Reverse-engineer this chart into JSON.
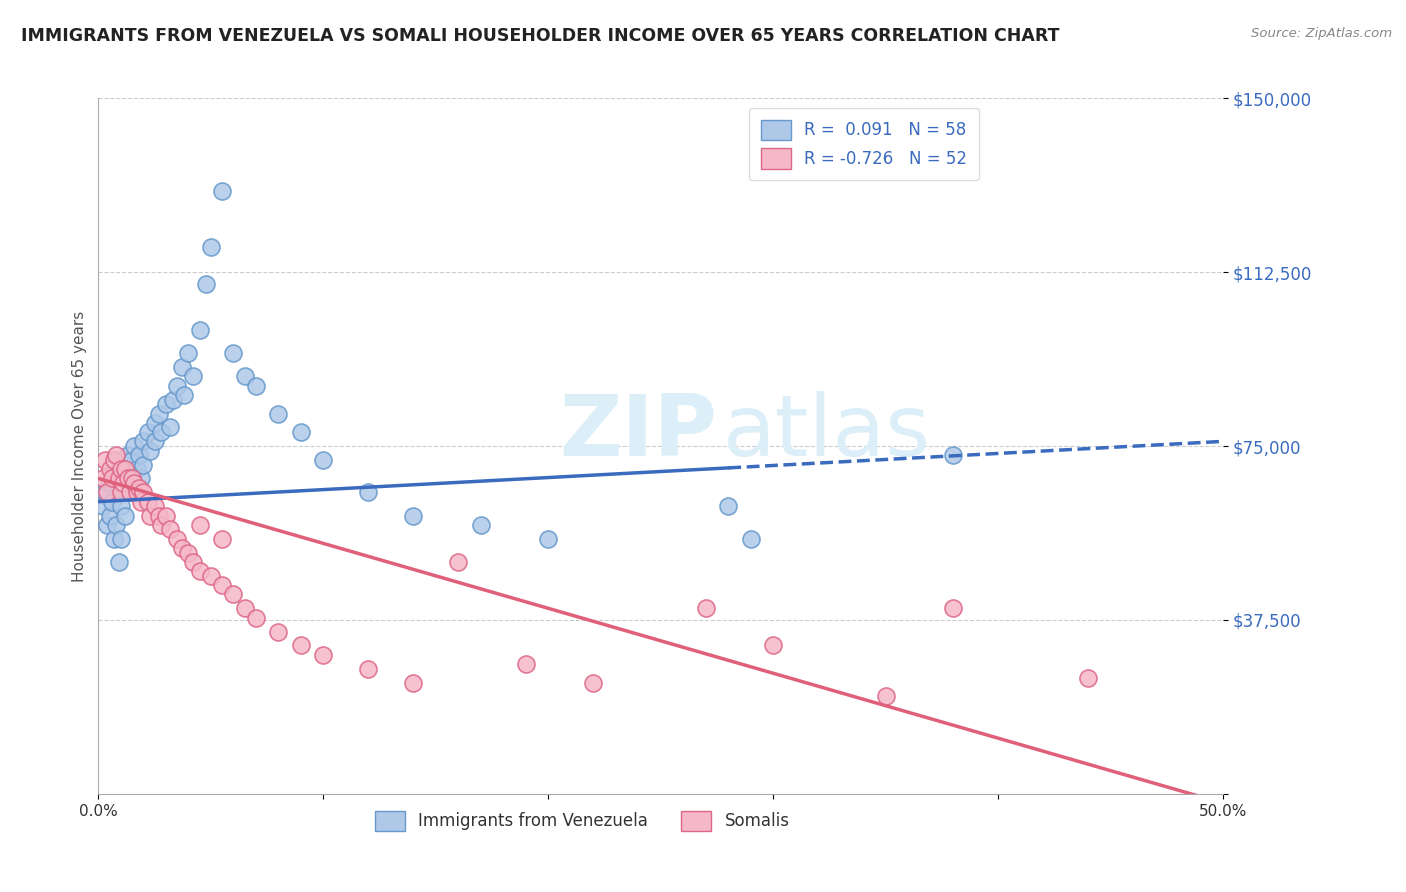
{
  "title": "IMMIGRANTS FROM VENEZUELA VS SOMALI HOUSEHOLDER INCOME OVER 65 YEARS CORRELATION CHART",
  "source": "Source: ZipAtlas.com",
  "ylabel": "Householder Income Over 65 years",
  "xmin": 0.0,
  "xmax": 0.5,
  "ymin": 0,
  "ymax": 150000,
  "yticks": [
    0,
    37500,
    75000,
    112500,
    150000
  ],
  "ytick_labels": [
    "",
    "$37,500",
    "$75,000",
    "$112,500",
    "$150,000"
  ],
  "xticks": [
    0.0,
    0.1,
    0.2,
    0.3,
    0.4,
    0.5
  ],
  "xtick_labels": [
    "0.0%",
    "",
    "",
    "",
    "",
    "50.0%"
  ],
  "blue_R": "0.091",
  "blue_N": "58",
  "pink_R": "-0.726",
  "pink_N": "52",
  "blue_color": "#aec8e8",
  "blue_edge": "#6699cc",
  "pink_color": "#f5b8c8",
  "pink_edge": "#dd6688",
  "blue_line_color": "#3a6bbf",
  "pink_line_color": "#e0607a",
  "label_color": "#3a6bbf",
  "watermark_color": "#dceef8",
  "blue_line_solid_end": 0.28,
  "blue_scatter_x": [
    0.002,
    0.003,
    0.004,
    0.005,
    0.005,
    0.006,
    0.007,
    0.007,
    0.008,
    0.008,
    0.009,
    0.009,
    0.01,
    0.01,
    0.01,
    0.012,
    0.012,
    0.013,
    0.014,
    0.015,
    0.015,
    0.016,
    0.017,
    0.018,
    0.019,
    0.02,
    0.02,
    0.022,
    0.023,
    0.025,
    0.025,
    0.027,
    0.028,
    0.03,
    0.032,
    0.033,
    0.035,
    0.037,
    0.038,
    0.04,
    0.042,
    0.045,
    0.048,
    0.05,
    0.055,
    0.06,
    0.065,
    0.07,
    0.08,
    0.09,
    0.1,
    0.12,
    0.14,
    0.17,
    0.2,
    0.28,
    0.29,
    0.38
  ],
  "blue_scatter_y": [
    62000,
    65000,
    58000,
    67000,
    60000,
    63000,
    70000,
    55000,
    72000,
    58000,
    66000,
    50000,
    68000,
    62000,
    55000,
    70000,
    60000,
    73000,
    65000,
    72000,
    67000,
    75000,
    70000,
    73000,
    68000,
    76000,
    71000,
    78000,
    74000,
    80000,
    76000,
    82000,
    78000,
    84000,
    79000,
    85000,
    88000,
    92000,
    86000,
    95000,
    90000,
    100000,
    110000,
    118000,
    130000,
    95000,
    90000,
    88000,
    82000,
    78000,
    72000,
    65000,
    60000,
    58000,
    55000,
    62000,
    55000,
    73000
  ],
  "pink_scatter_x": [
    0.002,
    0.003,
    0.004,
    0.005,
    0.006,
    0.007,
    0.008,
    0.009,
    0.01,
    0.01,
    0.011,
    0.012,
    0.013,
    0.014,
    0.015,
    0.016,
    0.017,
    0.018,
    0.019,
    0.02,
    0.022,
    0.023,
    0.025,
    0.027,
    0.028,
    0.03,
    0.032,
    0.035,
    0.037,
    0.04,
    0.042,
    0.045,
    0.05,
    0.055,
    0.06,
    0.065,
    0.07,
    0.08,
    0.09,
    0.1,
    0.12,
    0.14,
    0.16,
    0.19,
    0.22,
    0.27,
    0.3,
    0.35,
    0.38,
    0.44,
    0.045,
    0.055
  ],
  "pink_scatter_y": [
    68000,
    72000,
    65000,
    70000,
    68000,
    72000,
    73000,
    68000,
    70000,
    65000,
    67000,
    70000,
    68000,
    65000,
    68000,
    67000,
    65000,
    66000,
    63000,
    65000,
    63000,
    60000,
    62000,
    60000,
    58000,
    60000,
    57000,
    55000,
    53000,
    52000,
    50000,
    48000,
    47000,
    45000,
    43000,
    40000,
    38000,
    35000,
    32000,
    30000,
    27000,
    24000,
    50000,
    28000,
    24000,
    40000,
    32000,
    21000,
    40000,
    25000,
    58000,
    55000
  ],
  "blue_trend_x0": 0.0,
  "blue_trend_x1": 0.5,
  "blue_trend_y0": 63000,
  "blue_trend_y1": 76000,
  "pink_trend_x0": 0.0,
  "pink_trend_x1": 0.5,
  "pink_trend_y0": 68000,
  "pink_trend_y1": -2000
}
